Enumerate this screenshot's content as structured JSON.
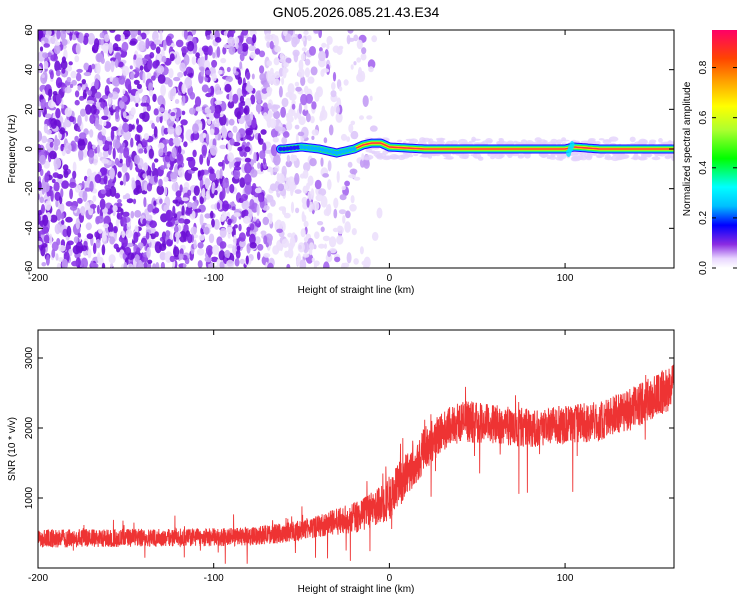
{
  "page": {
    "title": "GN05.2026.085.21.43.E34"
  },
  "chart_data": [
    {
      "type": "heatmap",
      "title": "GN05.2026.085.21.43.E34",
      "xlabel": "Height of straight line (km)",
      "ylabel": "Frequency (Hz)",
      "xlim": [
        -200,
        162
      ],
      "ylim": [
        -60,
        60
      ],
      "x_ticks": [
        -200,
        -100,
        0,
        100
      ],
      "y_ticks": [
        -60,
        -40,
        -20,
        0,
        20,
        40,
        60
      ],
      "colorbar": {
        "label": "Normalized spectral amplitude",
        "range": [
          0,
          0.95
        ],
        "ticks": [
          0.0,
          0.2,
          0.4,
          0.6,
          0.8
        ],
        "placement": "right"
      },
      "ridge": {
        "description_points_x": [
          -60,
          -55,
          -50,
          -45,
          -40,
          -35,
          -30,
          -25,
          -20,
          -15,
          -10,
          -5,
          0,
          20,
          40,
          60,
          80,
          100,
          105,
          120,
          140,
          162
        ],
        "description_points_y": [
          0,
          0.5,
          1,
          0.5,
          0,
          -1,
          -2,
          -1,
          0,
          2,
          3,
          3,
          1,
          0,
          0,
          0,
          0,
          0,
          1,
          0,
          0,
          0
        ]
      },
      "noise_region": {
        "x_from": -200,
        "x_to": -15
      }
    },
    {
      "type": "line",
      "xlabel": "Height of straight line (km)",
      "ylabel": "SNR (10 * v/v)",
      "xlim": [
        -200,
        162
      ],
      "ylim": [
        0,
        3400
      ],
      "x_ticks": [
        -200,
        -100,
        0,
        100
      ],
      "y_ticks": [
        1000,
        2000,
        3000
      ],
      "series": [
        {
          "color": "#ee3333",
          "trend_x": [
            -200,
            -150,
            -100,
            -80,
            -60,
            -40,
            -20,
            -10,
            0,
            10,
            20,
            30,
            40,
            60,
            80,
            100,
            120,
            140,
            162
          ],
          "trend_y": [
            420,
            430,
            440,
            450,
            500,
            600,
            720,
            820,
            1000,
            1350,
            1700,
            1950,
            2100,
            2050,
            2000,
            2050,
            2100,
            2300,
            2600
          ],
          "spread": [
            130,
            130,
            130,
            130,
            140,
            160,
            220,
            260,
            320,
            330,
            320,
            300,
            300,
            280,
            280,
            280,
            290,
            300,
            320
          ]
        }
      ]
    }
  ]
}
